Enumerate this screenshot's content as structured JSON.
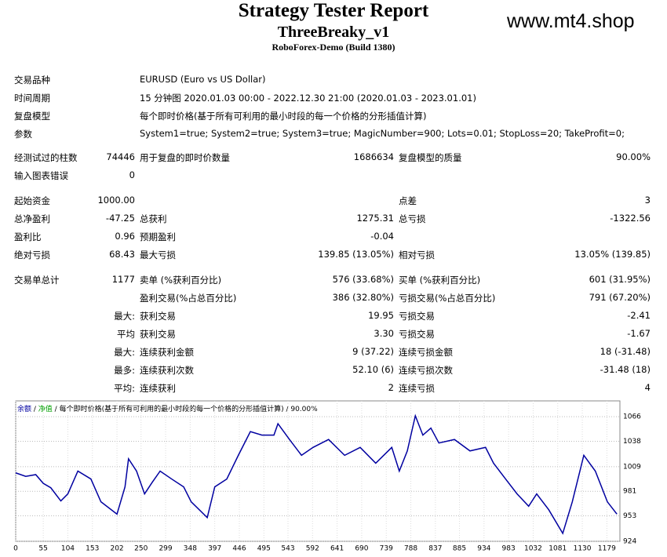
{
  "header": {
    "title": "Strategy Tester Report",
    "subtitle": "ThreeBreaky_v1",
    "build": "RoboForex-Demo (Build 1380)",
    "watermark": "www.mt4.shop"
  },
  "table": {
    "wide_rows": [
      {
        "label": "交易品种",
        "text": "EURUSD (Euro vs US Dollar)"
      },
      {
        "label": "时间周期",
        "text": "15 分钟图 2020.01.03 00:00 - 2022.12.30 21:00 (2020.01.03 - 2023.01.01)"
      },
      {
        "label": "复盘模型",
        "text": "每个即时价格(基于所有可利用的最小时段的每一个价格的分形插值计算)"
      },
      {
        "label": "参数",
        "text": "System1=true; System2=true; System3=true; MagicNumber=900; Lots=0.01; StopLoss=20; TakeProfit=0;"
      }
    ],
    "rows": [
      {
        "c1": "经测试过的柱数",
        "c2": "74446",
        "c3": "用于复盘的即时价数量",
        "c4": "1686634",
        "c5": "复盘模型的质量",
        "c6": "90.00%"
      },
      {
        "c1": "输入图表错误",
        "c2": "0"
      },
      {
        "c1": "起始资金",
        "c2": "1000.00",
        "c5": "点差",
        "c6": "3"
      },
      {
        "c1": "总净盈利",
        "c2": "-47.25",
        "c3": "总获利",
        "c4": "1275.31",
        "c5": "总亏损",
        "c6": "-1322.56"
      },
      {
        "c1": "盈利比",
        "c2": "0.96",
        "c3": "预期盈利",
        "c4": "-0.04"
      },
      {
        "c1": "绝对亏损",
        "c2": "68.43",
        "c3": "最大亏损",
        "c4": "139.85 (13.05%)",
        "c5": "相对亏损",
        "c6": "13.05% (139.85)"
      },
      {
        "c1": "交易单总计",
        "c2": "1177",
        "c3": "卖单 (%获利百分比)",
        "c4": "576 (33.68%)",
        "c5": "买单 (%获利百分比)",
        "c6": "601 (31.95%)"
      },
      {
        "c3": "盈利交易(%占总百分比)",
        "c4": "386 (32.80%)",
        "c5": "亏损交易(%占总百分比)",
        "c6": "791 (67.20%)"
      },
      {
        "c2": "最大:",
        "c3": "获利交易",
        "c4": "19.95",
        "c5": "亏损交易",
        "c6": "-2.41"
      },
      {
        "c2": "平均",
        "c3": "获利交易",
        "c4": "3.30",
        "c5": "亏损交易",
        "c6": "-1.67"
      },
      {
        "c2": "最大:",
        "c3": "连续获利金额",
        "c4": "9 (37.22)",
        "c5": "连续亏损金额",
        "c6": "18 (-31.48)"
      },
      {
        "c2": "最多:",
        "c3": "连续获利次数",
        "c4": "52.10 (6)",
        "c5": "连续亏损次数",
        "c6": "-31.48 (18)"
      },
      {
        "c2": "平均:",
        "c3": "连续获利",
        "c4": "2",
        "c5": "连续亏损",
        "c6": "4"
      }
    ]
  },
  "chart_data": {
    "type": "line",
    "net_label": "净值",
    "net_color": "#00a000",
    "model_label": "每个即时价格(基于所有可利用的最小时段的每一个价格的分形插值计算)",
    "quality": "90.00%",
    "x": [
      0,
      20,
      40,
      55,
      70,
      90,
      104,
      124,
      150,
      170,
      202,
      218,
      225,
      241,
      257,
      272,
      288,
      311,
      335,
      350,
      382,
      397,
      421,
      444,
      468,
      491,
      515,
      523,
      546,
      570,
      593,
      624,
      656,
      687,
      718,
      750,
      765,
      781,
      797,
      812,
      828,
      844,
      875,
      906,
      937,
      953,
      977,
      1000,
      1023,
      1039,
      1063,
      1091,
      1110,
      1133,
      1156,
      1180,
      1199
    ],
    "series": [
      {
        "name": "余额",
        "color": "#0000a0",
        "values": [
          1002,
          998,
          1000,
          990,
          985,
          970,
          978,
          1004,
          995,
          969,
          955,
          986,
          1018,
          1004,
          978,
          991,
          1004,
          995,
          986,
          969,
          951,
          986,
          995,
          1022,
          1049,
          1045,
          1045,
          1058,
          1040,
          1022,
          1031,
          1040,
          1022,
          1031,
          1013,
          1031,
          1004,
          1027,
          1067,
          1045,
          1053,
          1036,
          1040,
          1027,
          1031,
          1013,
          995,
          978,
          964,
          978,
          960,
          933,
          969,
          1022,
          1004,
          969,
          955
        ]
      }
    ],
    "xlim": [
      0,
      1205
    ],
    "ylim": [
      924,
      1084
    ],
    "xticks": [
      0,
      55,
      104,
      153,
      202,
      250,
      299,
      348,
      397,
      446,
      495,
      543,
      592,
      641,
      690,
      739,
      788,
      837,
      885,
      934,
      983,
      1032,
      1081,
      1130,
      1179
    ],
    "yticks": [
      924,
      953,
      981,
      1009,
      1038,
      1066
    ],
    "grid": true
  }
}
